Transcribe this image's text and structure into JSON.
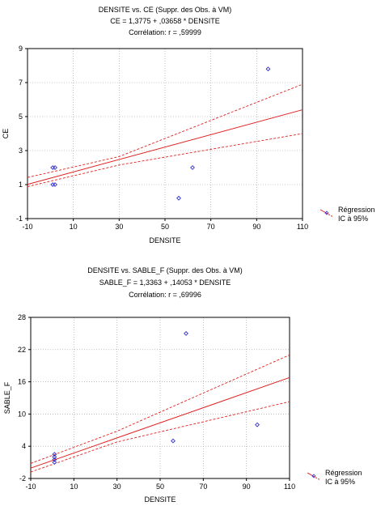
{
  "chart_data": [
    {
      "type": "scatter",
      "title": "DENSITE vs. CE (Suppr. des Obs. à VM)",
      "subtitle": "CE = 1,3775 + ,03658 * DENSITE",
      "annotation": "Corrélation: r = ,59999",
      "xlabel": "DENSITE",
      "ylabel": "CE",
      "xlim": [
        -10,
        110
      ],
      "ylim": [
        -1,
        9
      ],
      "xticks": [
        -10,
        10,
        30,
        50,
        70,
        90,
        110
      ],
      "xtick_labels": [
        "-10",
        "10",
        "30",
        "50",
        "70",
        "90",
        "110"
      ],
      "yticks": [
        -1,
        1,
        3,
        5,
        7,
        9
      ],
      "ytick_labels": [
        "-1",
        "1",
        "3",
        "5",
        "7",
        "9"
      ],
      "grid": true,
      "legend_position": "right",
      "legend": [
        "Régression",
        "IC à 95%"
      ],
      "points": [
        {
          "x": 1,
          "y": 2
        },
        {
          "x": 2,
          "y": 2
        },
        {
          "x": 1,
          "y": 1
        },
        {
          "x": 2,
          "y": 1
        },
        {
          "x": 56,
          "y": 0.2
        },
        {
          "x": 62,
          "y": 2
        },
        {
          "x": 95,
          "y": 7.8
        }
      ],
      "regression": {
        "intercept": 1.3775,
        "slope": 0.03658
      },
      "ci_lower": [
        [
          -10,
          0.88
        ],
        [
          30,
          2.15
        ],
        [
          110,
          4.0
        ]
      ],
      "ci_upper": [
        [
          -10,
          1.42
        ],
        [
          30,
          2.65
        ],
        [
          110,
          6.9
        ]
      ],
      "colors": {
        "points": "#3030d0",
        "lines": "#e02020"
      }
    },
    {
      "type": "scatter",
      "title": "DENSITE vs. SABLE_F (Suppr. des Obs. à VM)",
      "subtitle": "SABLE_F = 1,3363 + ,14053 * DENSITE",
      "annotation": "Corrélation: r = ,69996",
      "xlabel": "DENSITE",
      "ylabel": "SABLE_F",
      "xlim": [
        -10,
        110
      ],
      "ylim": [
        -2,
        28
      ],
      "xticks": [
        -10,
        10,
        30,
        50,
        70,
        90,
        110
      ],
      "xtick_labels": [
        "-10",
        "10",
        "30",
        "50",
        "70",
        "90",
        "110"
      ],
      "yticks": [
        -2,
        4,
        10,
        16,
        22,
        28
      ],
      "ytick_labels": [
        "-2",
        "4",
        "10",
        "16",
        "22",
        "28"
      ],
      "grid": true,
      "legend_position": "right",
      "legend": [
        "Régression",
        "IC à 95%"
      ],
      "points": [
        {
          "x": 1,
          "y": 2.5
        },
        {
          "x": 1,
          "y": 2
        },
        {
          "x": 1,
          "y": 1.5
        },
        {
          "x": 1,
          "y": 1
        },
        {
          "x": 56,
          "y": 5
        },
        {
          "x": 62,
          "y": 25
        },
        {
          "x": 95,
          "y": 8
        }
      ],
      "regression": {
        "intercept": 1.3363,
        "slope": 0.14053
      },
      "ci_lower": [
        [
          -10,
          -0.8
        ],
        [
          30,
          4.8
        ],
        [
          110,
          12.3
        ]
      ],
      "ci_upper": [
        [
          -10,
          0.8
        ],
        [
          30,
          6.8
        ],
        [
          110,
          21.0
        ]
      ],
      "colors": {
        "points": "#3030d0",
        "lines": "#e02020"
      }
    }
  ]
}
